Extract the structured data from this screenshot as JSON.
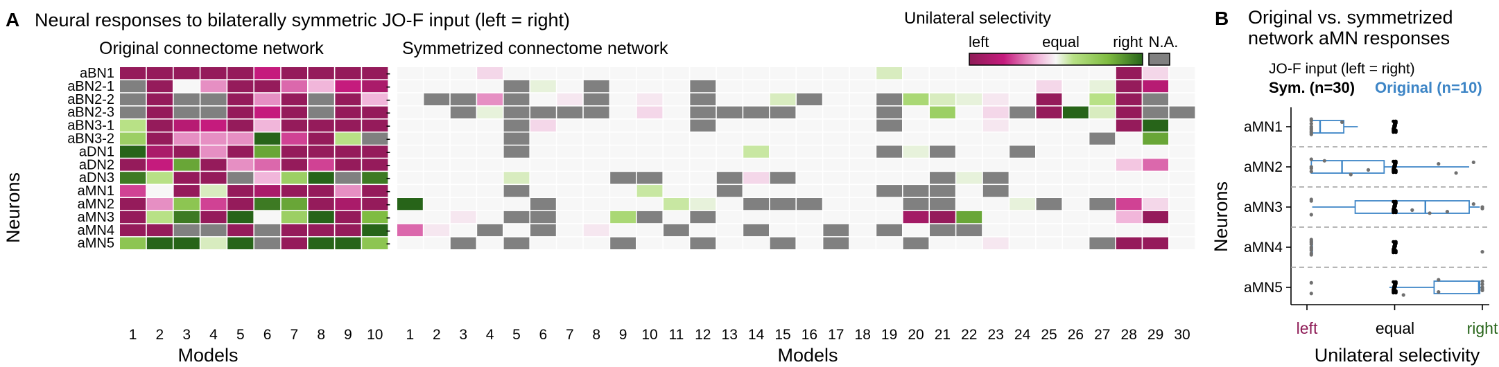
{
  "colors": {
    "left": "#8e1b56",
    "left_mid": "#c51b7d",
    "left_light": "#f1b6da",
    "equal": "#f7f7f7",
    "right_light": "#b8e186",
    "right_mid": "#7fbc41",
    "right": "#276419",
    "na": "#808080",
    "box": "#3d85c6",
    "sym_point": "#000000",
    "orig_point": "#707070",
    "dash": "#9e9e9e",
    "left_text": "#8e1b56",
    "right_text": "#276419"
  },
  "panel_a": {
    "letter": "A",
    "title": "Neural responses to bilaterally symmetric JO-F input (left = right)",
    "subtitle_original": "Original connectome network",
    "subtitle_sym": "Symmetrized connectome network",
    "ylabel": "Neurons",
    "xlabel": "Models",
    "dash_label": "-",
    "colorbar": {
      "title": "Unilateral selectivity",
      "left": "left",
      "equal": "equal",
      "right": "right",
      "na": "N.A."
    }
  },
  "panel_b": {
    "letter": "B",
    "title_line1": "Original vs. symmetrized",
    "title_line2": "network aMN responses",
    "input_label": "JO-F input (left = right)",
    "sym_label": "Sym. (n=30)",
    "orig_label": "Original (n=10)",
    "ylabel": "Neurons",
    "xlabel": "Unilateral selectivity",
    "tick_left": "left",
    "tick_equal": "equal",
    "tick_right": "right"
  },
  "chart_data": [
    {
      "type": "heatmap",
      "title": "Original connectome network",
      "xlabel": "Models",
      "ylabel": "Neurons",
      "rows": [
        "aBN1",
        "aBN2-1",
        "aBN2-2",
        "aBN2-3",
        "aBN3-1",
        "aBN3-2",
        "aDN1",
        "aDN2",
        "aDN3",
        "aMN1",
        "aMN2",
        "aMN3",
        "aMN4",
        "aMN5"
      ],
      "columns": [
        "1",
        "2",
        "3",
        "4",
        "5",
        "6",
        "7",
        "8",
        "9",
        "10"
      ],
      "value_scale": "-1 = left, 0 = equal, 1 = right, null = N.A.",
      "values": [
        [
          -0.95,
          -0.95,
          -0.95,
          -0.95,
          -0.95,
          -0.6,
          -0.95,
          -0.95,
          -0.95,
          -0.95
        ],
        [
          null,
          -0.95,
          0,
          -0.3,
          -0.95,
          -0.95,
          -0.4,
          -0.2,
          -0.6,
          -0.8
        ],
        [
          null,
          -0.95,
          null,
          null,
          -0.95,
          -0.3,
          -0.95,
          null,
          -0.95,
          -0.2
        ],
        [
          null,
          -0.95,
          null,
          null,
          -0.95,
          -0.6,
          -0.95,
          null,
          -0.95,
          -0.95
        ],
        [
          0.2,
          -0.95,
          -0.7,
          -0.6,
          -0.95,
          -0.2,
          -0.95,
          -0.95,
          -0.95,
          -0.95
        ],
        [
          0.4,
          -0.95,
          -0.3,
          -0.3,
          -0.3,
          1,
          -0.5,
          -0.95,
          0.2,
          null
        ],
        [
          1,
          -0.8,
          -0.95,
          -0.3,
          -0.95,
          0.7,
          -0.95,
          -0.95,
          -0.95,
          -0.95
        ],
        [
          -0.95,
          -0.6,
          0.7,
          -0.95,
          -0.3,
          -0.4,
          -0.95,
          -0.5,
          -0.95,
          -0.95
        ],
        [
          0.9,
          0.2,
          -0.95,
          -0.95,
          null,
          -0.2,
          0.4,
          1,
          null,
          0.9
        ],
        [
          -0.5,
          0,
          -0.95,
          0.1,
          -0.95,
          -0.8,
          -0.95,
          -0.95,
          -0.3,
          -0.95
        ],
        [
          -0.95,
          -0.3,
          0.5,
          -0.5,
          -0.95,
          0.9,
          0.7,
          -0.95,
          -0.8,
          -0.95
        ],
        [
          -0.95,
          0.2,
          0.9,
          -0.95,
          1,
          0,
          0.4,
          1,
          -0.95,
          0.6
        ],
        [
          -0.95,
          -0.95,
          null,
          null,
          -0.95,
          null,
          -0.95,
          -0.95,
          -0.95,
          1
        ],
        [
          0.5,
          1,
          1,
          0.1,
          1,
          null,
          -0.95,
          1,
          1,
          0.5
        ]
      ]
    },
    {
      "type": "heatmap",
      "title": "Symmetrized connectome network",
      "xlabel": "Models",
      "ylabel": "Neurons",
      "rows": [
        "aBN1",
        "aBN2-1",
        "aBN2-2",
        "aBN2-3",
        "aBN3-1",
        "aBN3-2",
        "aDN1",
        "aDN2",
        "aDN3",
        "aMN1",
        "aMN2",
        "aMN3",
        "aMN4",
        "aMN5"
      ],
      "columns": [
        "1",
        "2",
        "3",
        "4",
        "5",
        "6",
        "7",
        "8",
        "9",
        "10",
        "11",
        "12",
        "13",
        "14",
        "15",
        "16",
        "17",
        "18",
        "19",
        "20",
        "21",
        "22",
        "23",
        "24",
        "25",
        "26",
        "27",
        "28",
        "29",
        "30"
      ],
      "value_scale": "-1 = left, 0 = equal, 1 = right, null = N.A.",
      "values": [
        [
          0,
          0,
          0,
          -0.1,
          0,
          0,
          0,
          0,
          0,
          0,
          0,
          0,
          0,
          0,
          0,
          0,
          0,
          0,
          0.1,
          0,
          0,
          0,
          0,
          0,
          0,
          0,
          0,
          -0.95,
          -0.1,
          0
        ],
        [
          0,
          0,
          0,
          0,
          null,
          0.05,
          0,
          null,
          0,
          0,
          0,
          null,
          0,
          0,
          0,
          0,
          0,
          0,
          0,
          0,
          0,
          0,
          0,
          0,
          -0.1,
          0,
          0.05,
          -0.95,
          -0.7,
          0
        ],
        [
          0,
          null,
          null,
          -0.3,
          null,
          0,
          -0.05,
          null,
          0,
          -0.05,
          0,
          null,
          0,
          0,
          0.1,
          null,
          0,
          0,
          null,
          0.3,
          0.1,
          0.05,
          -0.05,
          0,
          -0.95,
          0,
          0.2,
          -0.95,
          null,
          0
        ],
        [
          0,
          0,
          null,
          0.05,
          null,
          null,
          null,
          null,
          0,
          -0.1,
          0,
          null,
          null,
          null,
          null,
          0,
          0,
          0,
          null,
          0,
          0.4,
          0,
          -0.1,
          null,
          -0.95,
          1,
          0.1,
          -0.95,
          null,
          null
        ],
        [
          0,
          0,
          0,
          0,
          null,
          -0.1,
          0,
          0,
          0,
          0,
          0,
          null,
          0,
          0,
          0,
          0,
          0,
          0,
          null,
          0,
          0,
          0,
          -0.05,
          0,
          0,
          0,
          0,
          -0.95,
          1,
          0
        ],
        [
          0,
          0,
          0,
          0,
          null,
          0,
          0,
          0,
          0,
          0,
          0,
          0,
          0,
          0,
          0,
          0,
          0,
          0,
          0,
          0,
          0,
          0,
          0,
          0,
          0,
          0,
          null,
          0,
          0.7,
          0
        ],
        [
          0,
          0,
          0,
          0,
          null,
          0,
          0,
          0,
          0,
          0,
          0,
          0,
          0,
          0.15,
          0,
          0,
          0,
          0,
          null,
          0.05,
          null,
          0,
          0,
          null,
          0,
          0,
          0,
          0,
          0,
          0
        ],
        [
          0,
          0,
          0,
          0,
          0,
          0,
          0,
          0,
          0,
          0,
          0,
          0,
          0,
          0,
          0,
          0,
          0,
          0,
          0,
          0,
          0,
          0,
          0,
          0,
          0,
          0,
          0,
          -0.15,
          -0.4,
          0
        ],
        [
          0,
          0,
          0,
          0,
          0.1,
          0,
          0,
          0,
          null,
          null,
          0,
          0,
          null,
          -0.1,
          null,
          0,
          0,
          0,
          0,
          0,
          null,
          0.05,
          null,
          0,
          0,
          0,
          0,
          0,
          0,
          0
        ],
        [
          0,
          0,
          0,
          0,
          null,
          0,
          0,
          0,
          0,
          0.15,
          0,
          0,
          null,
          0,
          0,
          0,
          0,
          0,
          null,
          null,
          null,
          0,
          null,
          0,
          0,
          0,
          0,
          0,
          0,
          0
        ],
        [
          1,
          0,
          0,
          0,
          0,
          null,
          0,
          0,
          0,
          0,
          0.15,
          0.05,
          0,
          null,
          null,
          null,
          0,
          0,
          0,
          null,
          null,
          0,
          0,
          0.05,
          null,
          0,
          null,
          -0.5,
          -0.1,
          0
        ],
        [
          0,
          0,
          -0.05,
          0,
          null,
          null,
          0,
          0,
          0.3,
          null,
          0,
          null,
          0,
          0,
          0,
          0,
          0,
          0,
          0,
          -0.85,
          -0.95,
          0.7,
          0,
          0,
          0,
          0,
          0,
          -0.2,
          -0.95,
          0
        ],
        [
          -0.4,
          -0.05,
          0,
          null,
          0,
          null,
          0,
          -0.05,
          0,
          0,
          null,
          0,
          0,
          null,
          0,
          0,
          null,
          0,
          null,
          0,
          null,
          null,
          0,
          0,
          0,
          0,
          0,
          0,
          0,
          0
        ],
        [
          0,
          0,
          null,
          0,
          null,
          0,
          0,
          0,
          null,
          0,
          0,
          null,
          0,
          0,
          null,
          0,
          null,
          0,
          0,
          null,
          0,
          0,
          -0.05,
          0,
          0,
          0,
          null,
          -0.95,
          -0.95,
          0
        ]
      ]
    },
    {
      "type": "box",
      "title_line1": "Original vs. symmetrized",
      "title_line2": "network aMN responses",
      "xlabel": "Unilateral selectivity",
      "ylabel": "Neurons",
      "xlim": [
        -1,
        1
      ],
      "x_ticks": [
        "left",
        "equal",
        "right"
      ],
      "categories": [
        "aMN1",
        "aMN2",
        "aMN3",
        "aMN4",
        "aMN5"
      ],
      "series": [
        {
          "name": "Original (n=10)",
          "box": [
            {
              "whislo": -0.96,
              "q1": -0.95,
              "med": -0.85,
              "q3": -0.58,
              "whishi": -0.42
            },
            {
              "whislo": -0.96,
              "q1": -0.95,
              "med": -0.6,
              "q3": -0.12,
              "whishi": 0.85
            },
            {
              "whislo": -0.94,
              "q1": -0.45,
              "med": 0.35,
              "q3": 0.85,
              "whishi": 0.97
            },
            {
              "whislo": -0.96,
              "q1": -0.95,
              "med": -0.95,
              "q3": -0.95,
              "whishi": -0.95
            },
            {
              "whislo": -0.06,
              "q1": 0.45,
              "med": 0.96,
              "q3": 0.97,
              "whishi": 0.98
            }
          ],
          "points": [
            [
              -0.95,
              -0.95,
              -0.95,
              -0.95,
              -0.95,
              -0.6,
              -0.95,
              -0.95,
              -0.95,
              -0.95
            ],
            [
              -0.95,
              -0.3,
              0.5,
              -0.5,
              -0.95,
              0.9,
              0.7,
              -0.95,
              -0.8,
              -0.95
            ],
            [
              -0.95,
              0.2,
              0.9,
              -0.95,
              1,
              0,
              0.4,
              1,
              -0.95,
              0.6
            ],
            [
              -0.95,
              -0.95,
              -0.95,
              -0.95,
              -0.95,
              -0.95,
              -0.95,
              -0.95,
              -0.95,
              1
            ],
            [
              0.5,
              1,
              1,
              0.1,
              1,
              -0.95,
              -0.95,
              1,
              1,
              0.5
            ]
          ]
        },
        {
          "name": "Sym. (n=30)",
          "points": [
            [
              0,
              0,
              0,
              0,
              0,
              0,
              0,
              0,
              0,
              0,
              0,
              0,
              0,
              0,
              0,
              0,
              0,
              0,
              0,
              0,
              0,
              0,
              0,
              0,
              0,
              0,
              0,
              0,
              0,
              0
            ],
            [
              0,
              0,
              0,
              0,
              0,
              0,
              0,
              0,
              0,
              0,
              0,
              0,
              0,
              0,
              0,
              0,
              0,
              0,
              0,
              0,
              0,
              0,
              0,
              0,
              0,
              0,
              0,
              0,
              0,
              0
            ],
            [
              0,
              0,
              0,
              0,
              0,
              0,
              0,
              0,
              0,
              0,
              0,
              0,
              0,
              0,
              0,
              0,
              0,
              0,
              0,
              0,
              0,
              0,
              0,
              0,
              0,
              0,
              0,
              0,
              0,
              0
            ],
            [
              0,
              0,
              0,
              0,
              0,
              0,
              0,
              0,
              0,
              0,
              0,
              0,
              0,
              0,
              0,
              0,
              0,
              0,
              0,
              0,
              0,
              0,
              0,
              0,
              0,
              0,
              0,
              0,
              0,
              0
            ],
            [
              0,
              0,
              0,
              0,
              0,
              0,
              0,
              0,
              0,
              0,
              0,
              0,
              0,
              0,
              0,
              0,
              0,
              0,
              0,
              0,
              0,
              0,
              0,
              0,
              0,
              0,
              0,
              0,
              0,
              0
            ]
          ]
        }
      ]
    }
  ]
}
